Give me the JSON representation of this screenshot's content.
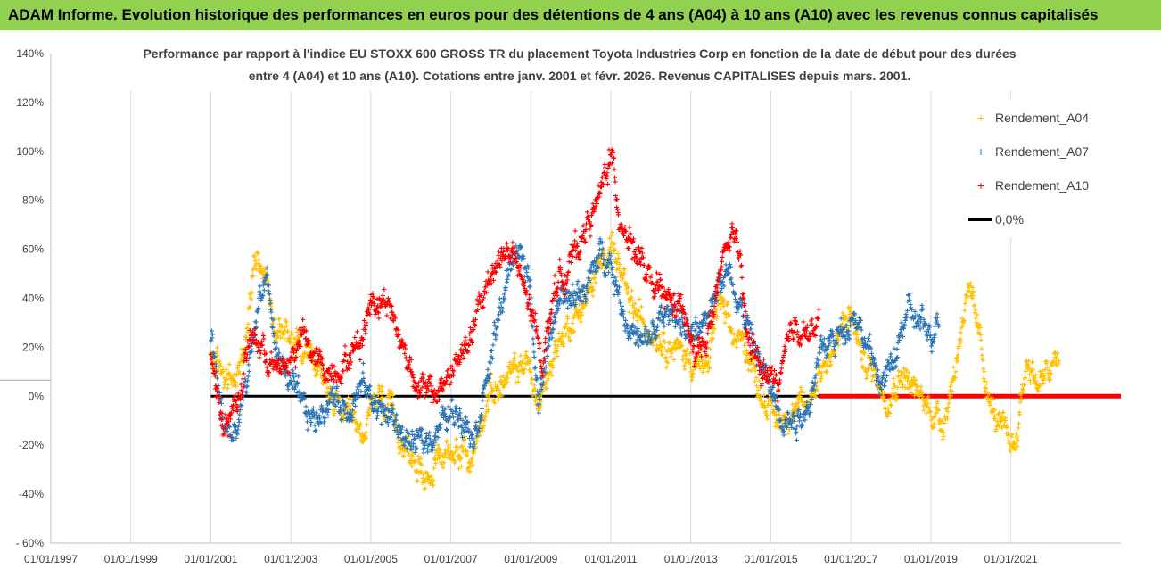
{
  "banner": "ADAM Informe. Evolution historique des performances en euros pour des détentions de 4 ans (A04) à 10 ans (A10) avec les revenus connus capitalisés",
  "chart_data": {
    "type": "scatter",
    "title_lines": [
      "Performance par rapport à l'indice EU STOXX 600 GROSS TR  du placement Toyota Industries Corp en fonction de la date de début pour des durées",
      "entre 4 (A04) et 10 ans (A10). Cotations entre janv. 2001 et févr. 2026. Revenus CAPITALISES depuis mars. 2001."
    ],
    "x_axis": {
      "min_year": 1997.0,
      "max_year": 2023.75,
      "ticks": [
        1997,
        1999,
        2001,
        2003,
        2005,
        2007,
        2009,
        2011,
        2013,
        2015,
        2017,
        2019,
        2021
      ],
      "tick_labels": [
        "01/01/1997",
        "01/01/1999",
        "01/01/2001",
        "01/01/2003",
        "01/01/2005",
        "01/01/2007",
        "01/01/2009",
        "01/01/2011",
        "01/01/2013",
        "01/01/2015",
        "01/01/2017",
        "01/01/2019",
        "01/01/2021"
      ]
    },
    "y_axis": {
      "min": -60,
      "max": 140,
      "ticks": [
        -60,
        -40,
        -20,
        0,
        20,
        40,
        60,
        80,
        100,
        120,
        140
      ],
      "tick_labels": [
        "- 60%",
        "-40%",
        "-20%",
        "0%",
        "20%",
        "40%",
        "60%",
        "80%",
        "100%",
        "120%",
        "140%"
      ]
    },
    "legend": {
      "position": "top-right",
      "line_label": "0,0%"
    },
    "series": [
      {
        "name": "Rendement_A04",
        "color": "#ffc000",
        "start": 2001.0,
        "end": 2022.2,
        "anchors": [
          [
            2001.0,
            15
          ],
          [
            2001.3,
            10
          ],
          [
            2001.6,
            5
          ],
          [
            2001.9,
            25
          ],
          [
            2002.1,
            60
          ],
          [
            2002.3,
            55
          ],
          [
            2002.6,
            30
          ],
          [
            2003.0,
            25
          ],
          [
            2003.4,
            20
          ],
          [
            2003.7,
            10
          ],
          [
            2004.0,
            0
          ],
          [
            2004.4,
            -10
          ],
          [
            2004.8,
            -15
          ],
          [
            2005.2,
            0
          ],
          [
            2005.6,
            -10
          ],
          [
            2006.0,
            -25
          ],
          [
            2006.4,
            -32
          ],
          [
            2006.8,
            -25
          ],
          [
            2007.2,
            -20
          ],
          [
            2007.5,
            -28
          ],
          [
            2007.9,
            0
          ],
          [
            2008.3,
            5
          ],
          [
            2008.6,
            10
          ],
          [
            2008.9,
            15
          ],
          [
            2009.2,
            -5
          ],
          [
            2009.6,
            20
          ],
          [
            2010.0,
            30
          ],
          [
            2010.4,
            40
          ],
          [
            2010.8,
            55
          ],
          [
            2011.0,
            65
          ],
          [
            2011.4,
            40
          ],
          [
            2011.8,
            30
          ],
          [
            2012.2,
            25
          ],
          [
            2012.6,
            20
          ],
          [
            2013.0,
            15
          ],
          [
            2013.4,
            10
          ],
          [
            2013.7,
            40
          ],
          [
            2014.0,
            25
          ],
          [
            2014.4,
            20
          ],
          [
            2014.8,
            0
          ],
          [
            2015.2,
            -10
          ],
          [
            2015.5,
            -5
          ],
          [
            2015.9,
            -5
          ],
          [
            2016.2,
            10
          ],
          [
            2016.6,
            20
          ],
          [
            2017.0,
            35
          ],
          [
            2017.3,
            15
          ],
          [
            2017.6,
            10
          ],
          [
            2017.9,
            0
          ],
          [
            2018.3,
            10
          ],
          [
            2018.7,
            0
          ],
          [
            2019.0,
            -5
          ],
          [
            2019.3,
            -10
          ],
          [
            2019.6,
            10
          ],
          [
            2019.9,
            45
          ],
          [
            2020.2,
            25
          ],
          [
            2020.5,
            -5
          ],
          [
            2020.8,
            -15
          ],
          [
            2021.1,
            -20
          ],
          [
            2021.4,
            15
          ],
          [
            2021.7,
            5
          ],
          [
            2022.2,
            15
          ]
        ]
      },
      {
        "name": "Rendement_A07",
        "color": "#2e75b6",
        "start": 2001.0,
        "end": 2019.2,
        "anchors": [
          [
            2001.0,
            25
          ],
          [
            2001.3,
            -10
          ],
          [
            2001.6,
            -18
          ],
          [
            2001.9,
            5
          ],
          [
            2002.2,
            40
          ],
          [
            2002.4,
            50
          ],
          [
            2002.6,
            20
          ],
          [
            2003.0,
            5
          ],
          [
            2003.3,
            -5
          ],
          [
            2003.6,
            -10
          ],
          [
            2004.0,
            0
          ],
          [
            2004.4,
            -5
          ],
          [
            2004.8,
            5
          ],
          [
            2005.2,
            -5
          ],
          [
            2005.6,
            -10
          ],
          [
            2006.0,
            -20
          ],
          [
            2006.4,
            -18
          ],
          [
            2006.8,
            -10
          ],
          [
            2007.2,
            -5
          ],
          [
            2007.6,
            -15
          ],
          [
            2008.0,
            15
          ],
          [
            2008.3,
            40
          ],
          [
            2008.6,
            60
          ],
          [
            2008.9,
            55
          ],
          [
            2009.2,
            0
          ],
          [
            2009.6,
            35
          ],
          [
            2010.0,
            40
          ],
          [
            2010.4,
            45
          ],
          [
            2010.8,
            60
          ],
          [
            2011.0,
            55
          ],
          [
            2011.4,
            30
          ],
          [
            2011.8,
            20
          ],
          [
            2012.2,
            30
          ],
          [
            2012.6,
            35
          ],
          [
            2013.0,
            25
          ],
          [
            2013.3,
            25
          ],
          [
            2013.7,
            50
          ],
          [
            2014.0,
            50
          ],
          [
            2014.4,
            30
          ],
          [
            2014.8,
            10
          ],
          [
            2015.2,
            -5
          ],
          [
            2015.5,
            -10
          ],
          [
            2015.9,
            -5
          ],
          [
            2016.3,
            20
          ],
          [
            2016.7,
            25
          ],
          [
            2017.1,
            35
          ],
          [
            2017.4,
            20
          ],
          [
            2017.8,
            5
          ],
          [
            2018.1,
            15
          ],
          [
            2018.4,
            35
          ],
          [
            2018.7,
            30
          ],
          [
            2019.0,
            25
          ],
          [
            2019.2,
            35
          ]
        ]
      },
      {
        "name": "Rendement_A10",
        "color": "#ff0000",
        "start": 2001.0,
        "end": 2016.2,
        "anchors": [
          [
            2001.0,
            20
          ],
          [
            2001.3,
            -12
          ],
          [
            2001.7,
            0
          ],
          [
            2002.0,
            25
          ],
          [
            2002.3,
            20
          ],
          [
            2002.6,
            10
          ],
          [
            2003.0,
            15
          ],
          [
            2003.3,
            25
          ],
          [
            2003.6,
            15
          ],
          [
            2004.0,
            10
          ],
          [
            2004.4,
            15
          ],
          [
            2004.8,
            25
          ],
          [
            2005.0,
            40
          ],
          [
            2005.4,
            40
          ],
          [
            2005.8,
            20
          ],
          [
            2006.2,
            5
          ],
          [
            2006.6,
            0
          ],
          [
            2007.0,
            10
          ],
          [
            2007.4,
            20
          ],
          [
            2007.8,
            40
          ],
          [
            2008.1,
            55
          ],
          [
            2008.5,
            60
          ],
          [
            2008.9,
            40
          ],
          [
            2009.3,
            15
          ],
          [
            2009.6,
            45
          ],
          [
            2010.0,
            55
          ],
          [
            2010.4,
            70
          ],
          [
            2010.7,
            80
          ],
          [
            2011.0,
            100
          ],
          [
            2011.2,
            75
          ],
          [
            2011.6,
            60
          ],
          [
            2012.0,
            45
          ],
          [
            2012.4,
            40
          ],
          [
            2012.8,
            35
          ],
          [
            2013.1,
            15
          ],
          [
            2013.5,
            30
          ],
          [
            2013.8,
            55
          ],
          [
            2014.1,
            70
          ],
          [
            2014.4,
            25
          ],
          [
            2014.8,
            10
          ],
          [
            2015.2,
            5
          ],
          [
            2015.6,
            30
          ],
          [
            2016.0,
            25
          ],
          [
            2016.2,
            30
          ]
        ]
      }
    ],
    "reference_lines": [
      {
        "label": "0,0%",
        "value": 0,
        "color": "#000000",
        "x_from": 2001.0,
        "x_to": 2016.2
      },
      {
        "label": "0,0%",
        "value": 0,
        "color": "#ff0000",
        "x_from": 2016.2,
        "x_to": 2023.75
      }
    ]
  }
}
